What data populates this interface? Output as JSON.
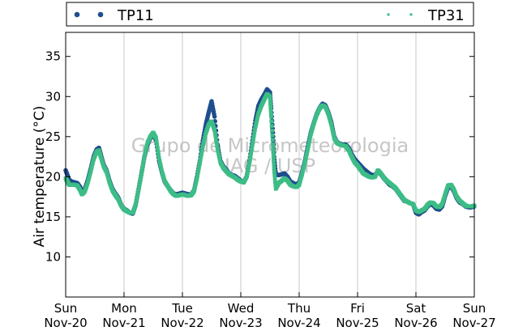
{
  "watermark": {
    "line1": "Grupo de Micrometeorologia",
    "line2": "IAG / USP"
  },
  "colors": {
    "TP11": "#1f4e8c",
    "TP31": "#3dbd86",
    "grid": "#c8c8c8",
    "axes": "#000000",
    "watermark": "#bdbdbd"
  },
  "chart_data": {
    "type": "scatter",
    "title": "",
    "xlabel": "",
    "ylabel": "Air temperature (°C)",
    "xlim": [
      0,
      7
    ],
    "ylim": [
      5,
      38
    ],
    "grid": "vertical lines at day boundaries",
    "legend_position": "top, above plot",
    "yticks": [
      10,
      15,
      20,
      25,
      30,
      35
    ],
    "xticks": [
      {
        "x": 0,
        "day": "Sun",
        "date": "Nov-20"
      },
      {
        "x": 1,
        "day": "Mon",
        "date": "Nov-21"
      },
      {
        "x": 2,
        "day": "Tue",
        "date": "Nov-22"
      },
      {
        "x": 3,
        "day": "Wed",
        "date": "Nov-23"
      },
      {
        "x": 4,
        "day": "Thu",
        "date": "Nov-24"
      },
      {
        "x": 5,
        "day": "Fri",
        "date": "Nov-25"
      },
      {
        "x": 6,
        "day": "Sat",
        "date": "Nov-26"
      },
      {
        "x": 7,
        "day": "Sun",
        "date": "Nov-27"
      }
    ],
    "series": [
      {
        "name": "TP11",
        "marker": "dot",
        "points": [
          [
            0.0,
            20.8
          ],
          [
            0.03,
            20.2
          ],
          [
            0.06,
            19.6
          ],
          [
            0.1,
            19.4
          ],
          [
            0.15,
            19.3
          ],
          [
            0.2,
            19.2
          ],
          [
            0.25,
            18.7
          ],
          [
            0.28,
            18.0
          ],
          [
            0.33,
            18.5
          ],
          [
            0.38,
            19.6
          ],
          [
            0.43,
            21.0
          ],
          [
            0.48,
            22.5
          ],
          [
            0.53,
            23.4
          ],
          [
            0.57,
            23.6
          ],
          [
            0.6,
            22.8
          ],
          [
            0.65,
            21.5
          ],
          [
            0.7,
            20.8
          ],
          [
            0.75,
            19.5
          ],
          [
            0.8,
            18.5
          ],
          [
            0.85,
            17.9
          ],
          [
            0.9,
            17.4
          ],
          [
            0.95,
            16.5
          ],
          [
            1.0,
            16.0
          ],
          [
            1.05,
            15.8
          ],
          [
            1.1,
            15.5
          ],
          [
            1.15,
            15.4
          ],
          [
            1.2,
            16.5
          ],
          [
            1.25,
            18.5
          ],
          [
            1.3,
            20.5
          ],
          [
            1.35,
            22.5
          ],
          [
            1.4,
            24.0
          ],
          [
            1.45,
            24.8
          ],
          [
            1.5,
            25.3
          ],
          [
            1.55,
            24.5
          ],
          [
            1.6,
            22.0
          ],
          [
            1.65,
            20.5
          ],
          [
            1.7,
            19.3
          ],
          [
            1.75,
            18.8
          ],
          [
            1.8,
            18.3
          ],
          [
            1.85,
            17.9
          ],
          [
            1.9,
            17.8
          ],
          [
            1.95,
            17.9
          ],
          [
            2.0,
            18.0
          ],
          [
            2.05,
            17.9
          ],
          [
            2.1,
            17.8
          ],
          [
            2.15,
            17.8
          ],
          [
            2.2,
            18.3
          ],
          [
            2.25,
            20.0
          ],
          [
            2.3,
            22.0
          ],
          [
            2.35,
            24.5
          ],
          [
            2.4,
            26.5
          ],
          [
            2.45,
            28.0
          ],
          [
            2.5,
            29.4
          ],
          [
            2.55,
            27.5
          ],
          [
            2.6,
            24.0
          ],
          [
            2.65,
            22.0
          ],
          [
            2.7,
            21.3
          ],
          [
            2.75,
            20.9
          ],
          [
            2.8,
            20.4
          ],
          [
            2.85,
            20.2
          ],
          [
            2.9,
            20.1
          ],
          [
            2.95,
            19.8
          ],
          [
            3.0,
            19.5
          ],
          [
            3.05,
            19.3
          ],
          [
            3.1,
            20.0
          ],
          [
            3.15,
            22.0
          ],
          [
            3.2,
            24.5
          ],
          [
            3.25,
            27.0
          ],
          [
            3.3,
            28.8
          ],
          [
            3.35,
            29.6
          ],
          [
            3.4,
            30.2
          ],
          [
            3.45,
            30.9
          ],
          [
            3.5,
            30.5
          ],
          [
            3.52,
            28.5
          ],
          [
            3.55,
            25.5
          ],
          [
            3.57,
            22.5
          ],
          [
            3.6,
            20.3
          ],
          [
            3.65,
            20.2
          ],
          [
            3.7,
            20.3
          ],
          [
            3.75,
            20.4
          ],
          [
            3.8,
            20.0
          ],
          [
            3.85,
            19.4
          ],
          [
            3.9,
            19.2
          ],
          [
            3.95,
            19.0
          ],
          [
            4.0,
            19.3
          ],
          [
            4.05,
            20.5
          ],
          [
            4.1,
            22.0
          ],
          [
            4.15,
            23.8
          ],
          [
            4.2,
            25.5
          ],
          [
            4.25,
            26.7
          ],
          [
            4.3,
            27.8
          ],
          [
            4.35,
            28.6
          ],
          [
            4.4,
            29.1
          ],
          [
            4.45,
            28.9
          ],
          [
            4.5,
            28.0
          ],
          [
            4.55,
            26.8
          ],
          [
            4.6,
            25.0
          ],
          [
            4.65,
            24.3
          ],
          [
            4.7,
            24.1
          ],
          [
            4.75,
            24.0
          ],
          [
            4.8,
            24.0
          ],
          [
            4.85,
            23.6
          ],
          [
            4.9,
            22.8
          ],
          [
            4.95,
            22.2
          ],
          [
            5.0,
            21.8
          ],
          [
            5.05,
            21.4
          ],
          [
            5.1,
            21.0
          ],
          [
            5.15,
            20.7
          ],
          [
            5.2,
            20.4
          ],
          [
            5.25,
            20.2
          ],
          [
            5.3,
            20.2
          ],
          [
            5.35,
            20.7
          ],
          [
            5.4,
            20.3
          ],
          [
            5.45,
            19.8
          ],
          [
            5.5,
            19.4
          ],
          [
            5.55,
            19.0
          ],
          [
            5.6,
            18.8
          ],
          [
            5.65,
            18.5
          ],
          [
            5.7,
            18.0
          ],
          [
            5.75,
            17.5
          ],
          [
            5.8,
            17.0
          ],
          [
            5.85,
            16.9
          ],
          [
            5.9,
            16.7
          ],
          [
            5.95,
            16.6
          ],
          [
            6.0,
            15.5
          ],
          [
            6.05,
            15.3
          ],
          [
            6.1,
            15.6
          ],
          [
            6.15,
            15.8
          ],
          [
            6.2,
            16.3
          ],
          [
            6.25,
            16.6
          ],
          [
            6.3,
            16.4
          ],
          [
            6.35,
            16.0
          ],
          [
            6.4,
            15.9
          ],
          [
            6.45,
            16.3
          ],
          [
            6.5,
            17.6
          ],
          [
            6.55,
            18.6
          ],
          [
            6.6,
            18.8
          ],
          [
            6.65,
            18.2
          ],
          [
            6.7,
            17.3
          ],
          [
            6.75,
            16.8
          ],
          [
            6.8,
            16.6
          ],
          [
            6.85,
            16.3
          ],
          [
            6.9,
            16.2
          ],
          [
            6.95,
            16.2
          ],
          [
            7.0,
            16.3
          ]
        ]
      },
      {
        "name": "TP31",
        "marker": "square",
        "points": [
          [
            0.0,
            19.8
          ],
          [
            0.03,
            19.4
          ],
          [
            0.06,
            19.0
          ],
          [
            0.1,
            19.0
          ],
          [
            0.15,
            19.0
          ],
          [
            0.2,
            18.9
          ],
          [
            0.25,
            18.3
          ],
          [
            0.28,
            17.8
          ],
          [
            0.33,
            18.2
          ],
          [
            0.38,
            19.3
          ],
          [
            0.43,
            20.7
          ],
          [
            0.48,
            22.2
          ],
          [
            0.53,
            23.1
          ],
          [
            0.57,
            23.3
          ],
          [
            0.6,
            22.5
          ],
          [
            0.65,
            21.3
          ],
          [
            0.7,
            20.6
          ],
          [
            0.75,
            19.3
          ],
          [
            0.8,
            18.3
          ],
          [
            0.85,
            17.7
          ],
          [
            0.9,
            17.2
          ],
          [
            0.95,
            16.4
          ],
          [
            1.0,
            15.9
          ],
          [
            1.05,
            15.7
          ],
          [
            1.1,
            15.5
          ],
          [
            1.15,
            15.5
          ],
          [
            1.2,
            16.6
          ],
          [
            1.25,
            18.4
          ],
          [
            1.3,
            20.4
          ],
          [
            1.35,
            22.6
          ],
          [
            1.4,
            24.2
          ],
          [
            1.45,
            25.0
          ],
          [
            1.5,
            25.5
          ],
          [
            1.55,
            24.8
          ],
          [
            1.6,
            22.3
          ],
          [
            1.65,
            20.6
          ],
          [
            1.7,
            19.4
          ],
          [
            1.75,
            18.8
          ],
          [
            1.8,
            18.2
          ],
          [
            1.85,
            17.8
          ],
          [
            1.9,
            17.6
          ],
          [
            1.95,
            17.7
          ],
          [
            2.0,
            17.8
          ],
          [
            2.05,
            17.7
          ],
          [
            2.1,
            17.6
          ],
          [
            2.15,
            17.7
          ],
          [
            2.2,
            18.2
          ],
          [
            2.25,
            19.8
          ],
          [
            2.3,
            21.8
          ],
          [
            2.35,
            23.8
          ],
          [
            2.4,
            25.4
          ],
          [
            2.45,
            26.5
          ],
          [
            2.5,
            26.9
          ],
          [
            2.55,
            25.8
          ],
          [
            2.6,
            23.5
          ],
          [
            2.65,
            21.8
          ],
          [
            2.7,
            21.1
          ],
          [
            2.75,
            20.7
          ],
          [
            2.8,
            20.3
          ],
          [
            2.85,
            20.1
          ],
          [
            2.9,
            19.9
          ],
          [
            2.95,
            19.6
          ],
          [
            3.0,
            19.4
          ],
          [
            3.05,
            19.3
          ],
          [
            3.1,
            20.0
          ],
          [
            3.15,
            21.8
          ],
          [
            3.2,
            24.0
          ],
          [
            3.25,
            26.2
          ],
          [
            3.3,
            27.8
          ],
          [
            3.35,
            28.8
          ],
          [
            3.4,
            29.6
          ],
          [
            3.45,
            30.3
          ],
          [
            3.5,
            30.0
          ],
          [
            3.52,
            27.5
          ],
          [
            3.55,
            24.0
          ],
          [
            3.57,
            21.0
          ],
          [
            3.6,
            18.5
          ],
          [
            3.65,
            19.2
          ],
          [
            3.7,
            19.5
          ],
          [
            3.75,
            19.8
          ],
          [
            3.8,
            19.5
          ],
          [
            3.85,
            19.0
          ],
          [
            3.9,
            18.8
          ],
          [
            3.95,
            18.7
          ],
          [
            4.0,
            19.0
          ],
          [
            4.05,
            20.3
          ],
          [
            4.1,
            21.8
          ],
          [
            4.15,
            23.5
          ],
          [
            4.2,
            25.3
          ],
          [
            4.25,
            26.6
          ],
          [
            4.3,
            27.7
          ],
          [
            4.35,
            28.5
          ],
          [
            4.4,
            28.9
          ],
          [
            4.45,
            28.7
          ],
          [
            4.5,
            27.8
          ],
          [
            4.55,
            26.5
          ],
          [
            4.6,
            24.8
          ],
          [
            4.65,
            24.2
          ],
          [
            4.7,
            24.0
          ],
          [
            4.75,
            23.9
          ],
          [
            4.8,
            23.8
          ],
          [
            4.85,
            23.3
          ],
          [
            4.9,
            22.5
          ],
          [
            4.95,
            21.8
          ],
          [
            5.0,
            21.4
          ],
          [
            5.05,
            20.9
          ],
          [
            5.1,
            20.4
          ],
          [
            5.15,
            20.2
          ],
          [
            5.2,
            20.0
          ],
          [
            5.25,
            19.9
          ],
          [
            5.3,
            20.0
          ],
          [
            5.35,
            20.8
          ],
          [
            5.4,
            20.4
          ],
          [
            5.45,
            19.9
          ],
          [
            5.5,
            19.5
          ],
          [
            5.55,
            19.2
          ],
          [
            5.6,
            18.9
          ],
          [
            5.65,
            18.6
          ],
          [
            5.7,
            18.1
          ],
          [
            5.75,
            17.6
          ],
          [
            5.8,
            17.1
          ],
          [
            5.85,
            16.9
          ],
          [
            5.9,
            16.7
          ],
          [
            5.95,
            16.6
          ],
          [
            6.0,
            15.8
          ],
          [
            6.05,
            15.6
          ],
          [
            6.1,
            15.8
          ],
          [
            6.15,
            16.0
          ],
          [
            6.2,
            16.5
          ],
          [
            6.25,
            16.8
          ],
          [
            6.3,
            16.7
          ],
          [
            6.35,
            16.3
          ],
          [
            6.4,
            16.2
          ],
          [
            6.45,
            16.6
          ],
          [
            6.5,
            17.8
          ],
          [
            6.55,
            18.9
          ],
          [
            6.6,
            19.0
          ],
          [
            6.65,
            18.4
          ],
          [
            6.7,
            17.5
          ],
          [
            6.75,
            17.0
          ],
          [
            6.8,
            16.7
          ],
          [
            6.85,
            16.4
          ],
          [
            6.9,
            16.3
          ],
          [
            6.95,
            16.3
          ],
          [
            7.0,
            16.4
          ]
        ]
      }
    ]
  }
}
